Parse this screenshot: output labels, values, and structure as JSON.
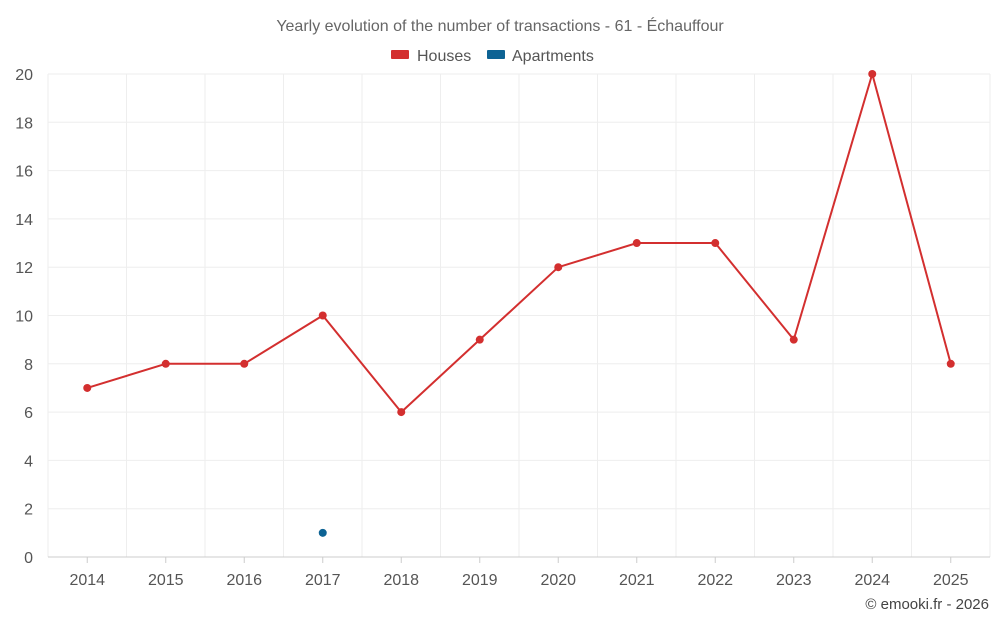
{
  "chart_data": {
    "type": "line",
    "title": "Yearly evolution of the number of transactions - 61 - Échauffour",
    "categories": [
      "2014",
      "2015",
      "2016",
      "2017",
      "2018",
      "2019",
      "2020",
      "2021",
      "2022",
      "2023",
      "2024",
      "2025"
    ],
    "series": [
      {
        "name": "Houses",
        "color": "#d32f2f",
        "values": [
          7,
          8,
          8,
          10,
          6,
          9,
          12,
          13,
          13,
          9,
          20,
          8
        ]
      },
      {
        "name": "Apartments",
        "color": "#0d6394",
        "values": [
          null,
          null,
          null,
          1,
          null,
          null,
          null,
          null,
          null,
          null,
          null,
          null
        ]
      }
    ],
    "ylim": [
      0,
      20
    ],
    "yticks": [
      0,
      2,
      4,
      6,
      8,
      10,
      12,
      14,
      16,
      18,
      20
    ],
    "xlabel": "",
    "ylabel": "",
    "grid": true,
    "legend": "top-center"
  },
  "credit": "© emooki.fr - 2026"
}
